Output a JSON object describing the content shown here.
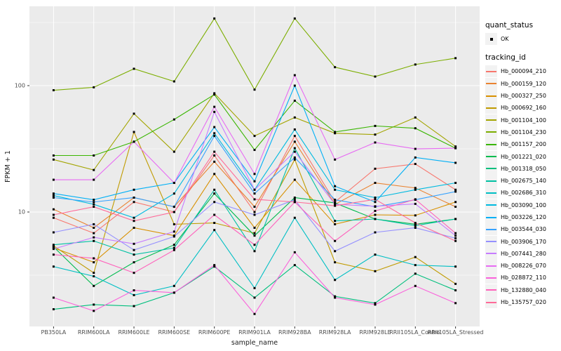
{
  "chart_data": {
    "type": "line",
    "title": "",
    "xlabel": "sample_name",
    "ylabel": "FPKM + 1",
    "y_scale": "log10",
    "ylim": [
      1.24,
      419
    ],
    "y_major_ticks": [
      100,
      10
    ],
    "y_tick_labels": [
      "100",
      "10"
    ],
    "y_minor_breaks": [
      316.2,
      31.62,
      3.162
    ],
    "grid": true,
    "legend_position": "right",
    "point_color": "#000000",
    "categories": [
      "PB350LA",
      "RRIM600LA",
      "RRIM600LE",
      "RRIM600SE",
      "RRIM600PE",
      "RRIM901LA",
      "RRIM928BA",
      "RRIM928LA",
      "RRIM928LE",
      "RRII105LA_Control",
      "RRII105LA_Stressed"
    ],
    "series": [
      {
        "name": "Hb_000094_210",
        "color": "#F8766D",
        "values": [
          9.0,
          6.8,
          12,
          10,
          28,
          10,
          40,
          12,
          22,
          24,
          15
        ]
      },
      {
        "name": "Hb_000159_120",
        "color": "#EA8331",
        "values": [
          10.5,
          7.5,
          13,
          11,
          25,
          11,
          36,
          11.5,
          17,
          15.5,
          11
        ]
      },
      {
        "name": "Hb_000327_250",
        "color": "#D89000",
        "values": [
          5.2,
          4.0,
          7.5,
          6.5,
          20,
          7.5,
          18,
          8,
          9.5,
          9.4,
          12
        ]
      },
      {
        "name": "Hb_000692_160",
        "color": "#C09B00",
        "values": [
          5.4,
          3.3,
          43,
          8,
          8.2,
          6.8,
          26,
          4,
          3.4,
          4.4,
          2.7
        ]
      },
      {
        "name": "Hb_001104_100",
        "color": "#A3A500",
        "values": [
          26,
          21.5,
          60,
          30,
          87,
          40,
          56,
          42,
          41,
          56,
          33
        ]
      },
      {
        "name": "Hb_001104_230",
        "color": "#7CAE00",
        "values": [
          92,
          97,
          136,
          108,
          340,
          93,
          340,
          140,
          118,
          147,
          165
        ]
      },
      {
        "name": "Hb_001157_200",
        "color": "#39B600",
        "values": [
          28,
          28,
          36,
          54,
          85,
          31,
          76,
          43,
          48,
          46,
          32
        ]
      },
      {
        "name": "Hb_001221_020",
        "color": "#00BB4E",
        "values": [
          5.3,
          2.6,
          4.0,
          5.5,
          14,
          6.5,
          13,
          11.8,
          8.8,
          8.0,
          8.8
        ]
      },
      {
        "name": "Hb_001318_050",
        "color": "#00BF7D",
        "values": [
          1.7,
          1.85,
          1.8,
          2.3,
          3.7,
          2.1,
          3.8,
          2.15,
          1.9,
          3.25,
          2.4
        ]
      },
      {
        "name": "Hb_002675_140",
        "color": "#00C1A3",
        "values": [
          5.5,
          5.9,
          4.6,
          5.2,
          15,
          4.9,
          32,
          8.5,
          8.8,
          7.8,
          8.8
        ]
      },
      {
        "name": "Hb_002686_310",
        "color": "#00BFC4",
        "values": [
          3.7,
          3.1,
          2.2,
          2.6,
          7.2,
          2.5,
          9.0,
          2.9,
          4.6,
          3.8,
          3.7
        ]
      },
      {
        "name": "Hb_003090_100",
        "color": "#00BAE0",
        "values": [
          13.5,
          11.5,
          9.0,
          14,
          42,
          15,
          45,
          15,
          13,
          15,
          17
        ]
      },
      {
        "name": "Hb_003226_120",
        "color": "#00B0F6",
        "values": [
          14,
          12.5,
          15,
          17,
          47,
          17.5,
          100,
          16,
          12,
          27,
          24.5
        ]
      },
      {
        "name": "Hb_003544_030",
        "color": "#35A2FF",
        "values": [
          13,
          12,
          13,
          11,
          40,
          14,
          27,
          12.5,
          11,
          12.5,
          14.5
        ]
      },
      {
        "name": "Hb_003906_170",
        "color": "#9590FF",
        "values": [
          6.9,
          8.0,
          5.0,
          6.4,
          12,
          9.5,
          12.5,
          4.9,
          6.9,
          7.5,
          6.2
        ]
      },
      {
        "name": "Hb_007441_280",
        "color": "#C77CFF",
        "values": [
          5.1,
          6.3,
          5.6,
          7.0,
          62,
          15,
          30,
          11.5,
          11.1,
          11.6,
          6.5
        ]
      },
      {
        "name": "Hb_008226_070",
        "color": "#E76BF3",
        "values": [
          18,
          18,
          36,
          17,
          68,
          20,
          121,
          26,
          35.5,
          31.6,
          32
        ]
      },
      {
        "name": "Hb_028872_110",
        "color": "#FA62DB",
        "values": [
          2.1,
          1.65,
          2.4,
          2.3,
          3.8,
          1.56,
          4.8,
          2.1,
          1.85,
          2.6,
          1.9
        ]
      },
      {
        "name": "Hb_132880_040",
        "color": "#FF62BC",
        "values": [
          4.6,
          4.3,
          3.3,
          5.0,
          9.5,
          5.5,
          12,
          5.9,
          10.2,
          12.6,
          6.8
        ]
      },
      {
        "name": "Hb_135757_020",
        "color": "#FF6A98",
        "values": [
          9.5,
          11,
          8.5,
          10,
          30,
          12.6,
          12,
          11.2,
          12.6,
          8.2,
          5.9
        ]
      }
    ]
  },
  "legend": {
    "quant_status": {
      "title": "quant_status",
      "items": [
        {
          "label": "OK",
          "marker": "black-point"
        }
      ]
    },
    "tracking": {
      "title": "tracking_id"
    }
  },
  "theme": {
    "panel_bg": "#EBEBEB",
    "grid_color": "#FFFFFF",
    "tick_label_color": "#4D4D4D",
    "axis_title_color": "#1A1A1A",
    "legend_key_bg": "#F2F2F2",
    "point_color": "#000000"
  }
}
